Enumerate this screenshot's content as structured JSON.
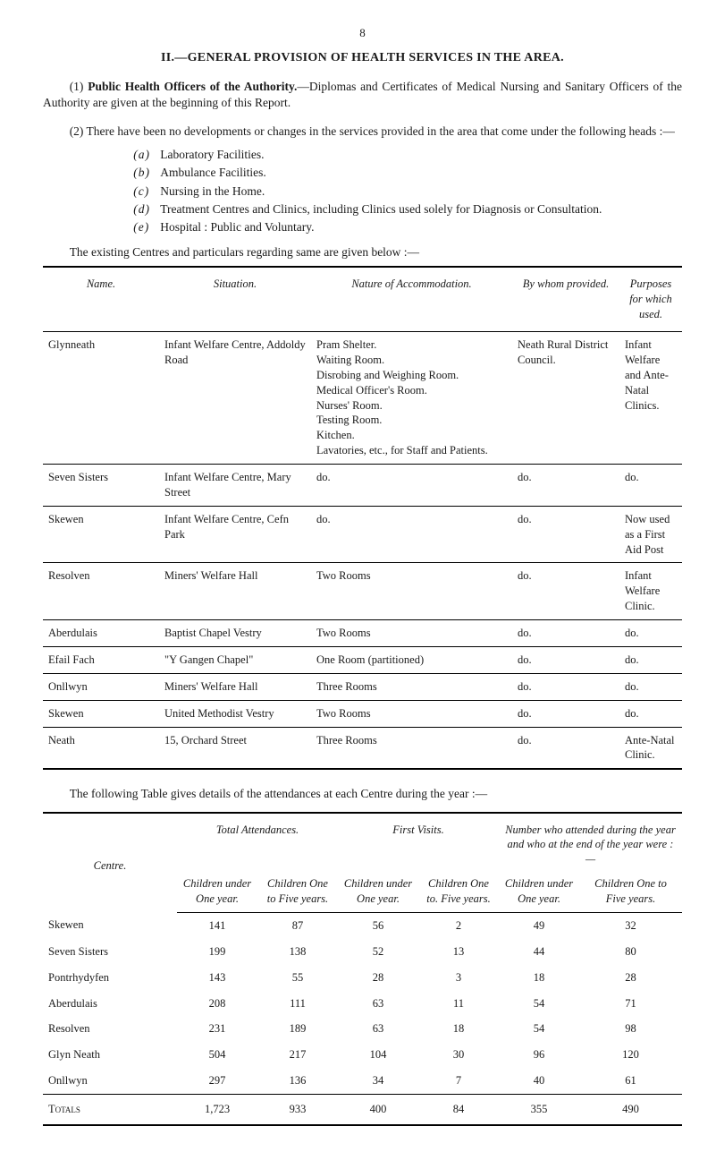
{
  "page_number": "8",
  "heading": "II.—GENERAL PROVISION OF HEALTH SERVICES IN THE AREA.",
  "para1_prefix": "(1) ",
  "para1_bold": "Public Health Officers of the Authority.",
  "para1_rest": "—Diplomas and Certificates of Medical Nursing and Sanitary Officers of the Authority are given at the beginning of this Report.",
  "para2": "(2) There have been no developments or changes in the services provided in the area that come under the following heads :—",
  "list": [
    {
      "m": "(a)",
      "t": "Laboratory Facilities."
    },
    {
      "m": "(b)",
      "t": "Ambulance Facilities."
    },
    {
      "m": "(c)",
      "t": "Nursing in the Home."
    },
    {
      "m": "(d)",
      "t": "Treatment Centres and Clinics, including Clinics used solely for Diagnosis or Consultation."
    },
    {
      "m": "(e)",
      "t": "Hospital : Public and Voluntary."
    }
  ],
  "rule_para": "The existing Centres and particulars regarding same are given below :—",
  "table1": {
    "columns": [
      "Name.",
      "Situation.",
      "Nature of Accommodation.",
      "By whom provided.",
      "Purposes for which used."
    ],
    "rows": [
      {
        "name": "Glynneath",
        "situation": "Infant Welfare Centre, Addoldy Road",
        "nature": "Pram Shelter.\nWaiting Room.\nDisrobing and Weighing Room.\nMedical Officer's Room.\nNurses' Room.\nTesting Room.\nKitchen.\nLavatories, etc., for Staff and Patients.",
        "provided": "Neath Rural District Council.",
        "purpose": "Infant Welfare and Ante-Natal Clinics."
      },
      {
        "name": "Seven Sisters",
        "situation": "Infant Welfare Centre, Mary Street",
        "nature": "do.",
        "provided": "do.",
        "purpose": "do."
      },
      {
        "name": "Skewen",
        "situation": "Infant Welfare Centre, Cefn Park",
        "nature": "do.",
        "provided": "do.",
        "purpose": "Now used as a First Aid Post"
      },
      {
        "name": "Resolven",
        "situation": "Miners' Welfare Hall",
        "nature": "Two Rooms",
        "provided": "do.",
        "purpose": "Infant Welfare Clinic."
      },
      {
        "name": "Aberdulais",
        "situation": "Baptist Chapel Vestry",
        "nature": "Two Rooms",
        "provided": "do.",
        "purpose": "do."
      },
      {
        "name": "Efail Fach",
        "situation": "\"Y Gangen Chapel\"",
        "nature": "One Room (partitioned)",
        "provided": "do.",
        "purpose": "do."
      },
      {
        "name": "Onllwyn",
        "situation": "Miners' Welfare Hall",
        "nature": "Three Rooms",
        "provided": "do.",
        "purpose": "do."
      },
      {
        "name": "Skewen",
        "situation": "United Methodist Vestry",
        "nature": "Two Rooms",
        "provided": "do.",
        "purpose": "do."
      },
      {
        "name": "Neath",
        "situation": "15, Orchard Street",
        "nature": "Three Rooms",
        "provided": "do.",
        "purpose": "Ante-Natal Clinic."
      }
    ]
  },
  "between": "The following Table gives details of the attendances at each Centre during the year :—",
  "table2": {
    "centre_label": "Centre.",
    "group_headers": [
      "Total Attendances.",
      "First Visits.",
      "Number who attended during the year and who at the end of the year were :—"
    ],
    "sub_headers": [
      "Children under One year.",
      "Children One to Five years.",
      "Children under One year.",
      "Children One to. Five years.",
      "Children under One year.",
      "Children One to Five years."
    ],
    "rows": [
      {
        "name": "Skewen",
        "v": [
          "141",
          "87",
          "56",
          "2",
          "49",
          "32"
        ]
      },
      {
        "name": "Seven Sisters",
        "v": [
          "199",
          "138",
          "52",
          "13",
          "44",
          "80"
        ]
      },
      {
        "name": "Pontrhydyfen",
        "v": [
          "143",
          "55",
          "28",
          "3",
          "18",
          "28"
        ]
      },
      {
        "name": "Aberdulais",
        "v": [
          "208",
          "111",
          "63",
          "11",
          "54",
          "71"
        ]
      },
      {
        "name": "Resolven",
        "v": [
          "231",
          "189",
          "63",
          "18",
          "54",
          "98"
        ]
      },
      {
        "name": "Glyn Neath",
        "v": [
          "504",
          "217",
          "104",
          "30",
          "96",
          "120"
        ]
      },
      {
        "name": "Onllwyn",
        "v": [
          "297",
          "136",
          "34",
          "7",
          "40",
          "61"
        ]
      }
    ],
    "totals_label": "Totals",
    "totals": [
      "1,723",
      "933",
      "400",
      "84",
      "355",
      "490"
    ]
  }
}
